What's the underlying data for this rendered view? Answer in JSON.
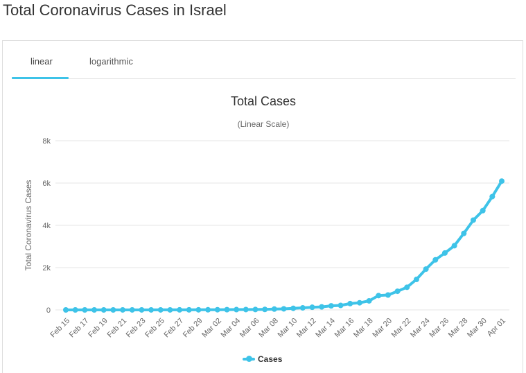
{
  "page": {
    "title": "Total Coronavirus Cases in Israel"
  },
  "tabs": [
    {
      "label": "linear"
    },
    {
      "label": "logarithmic"
    }
  ],
  "colors": {
    "series": "#3ec3e8",
    "grid": "#e6e6e6",
    "axis_text": "#666666"
  },
  "chart_data": {
    "type": "line",
    "title": "Total Cases",
    "subtitle": "(Linear Scale)",
    "ylabel": "Total Coronavirus Cases",
    "xlabel": "",
    "ylim": [
      0,
      8000
    ],
    "y_ticks": [
      0,
      2000,
      4000,
      6000,
      8000
    ],
    "y_tick_labels": [
      "0",
      "2k",
      "4k",
      "6k",
      "8k"
    ],
    "x": [
      "Feb 15",
      "Feb 16",
      "Feb 17",
      "Feb 18",
      "Feb 19",
      "Feb 20",
      "Feb 21",
      "Feb 22",
      "Feb 23",
      "Feb 24",
      "Feb 25",
      "Feb 26",
      "Feb 27",
      "Feb 28",
      "Feb 29",
      "Mar 01",
      "Mar 02",
      "Mar 03",
      "Mar 04",
      "Mar 05",
      "Mar 06",
      "Mar 07",
      "Mar 08",
      "Mar 09",
      "Mar 10",
      "Mar 11",
      "Mar 12",
      "Mar 13",
      "Mar 14",
      "Mar 15",
      "Mar 16",
      "Mar 17",
      "Mar 18",
      "Mar 19",
      "Mar 20",
      "Mar 21",
      "Mar 22",
      "Mar 23",
      "Mar 24",
      "Mar 25",
      "Mar 26",
      "Mar 27",
      "Mar 28",
      "Mar 29",
      "Mar 30",
      "Mar 31",
      "Apr 01"
    ],
    "x_tick_labels": [
      "Feb 15",
      "Feb 17",
      "Feb 19",
      "Feb 21",
      "Feb 23",
      "Feb 25",
      "Feb 27",
      "Feb 29",
      "Mar 02",
      "Mar 04",
      "Mar 06",
      "Mar 08",
      "Mar 10",
      "Mar 12",
      "Mar 14",
      "Mar 16",
      "Mar 18",
      "Mar 20",
      "Mar 22",
      "Mar 24",
      "Mar 26",
      "Mar 28",
      "Mar 30",
      "Apr 01"
    ],
    "series": [
      {
        "name": "Cases",
        "values": [
          0,
          0,
          0,
          0,
          0,
          0,
          1,
          1,
          1,
          1,
          2,
          2,
          3,
          4,
          5,
          7,
          10,
          12,
          15,
          17,
          21,
          25,
          39,
          50,
          75,
          97,
          126,
          143,
          193,
          213,
          298,
          337,
          427,
          678,
          705,
          883,
          1071,
          1442,
          1930,
          2369,
          2693,
          3035,
          3619,
          4247,
          4695,
          5358,
          6092
        ]
      }
    ],
    "legend": {
      "position": "bottom-center",
      "label": "Cases"
    },
    "grid": true
  }
}
